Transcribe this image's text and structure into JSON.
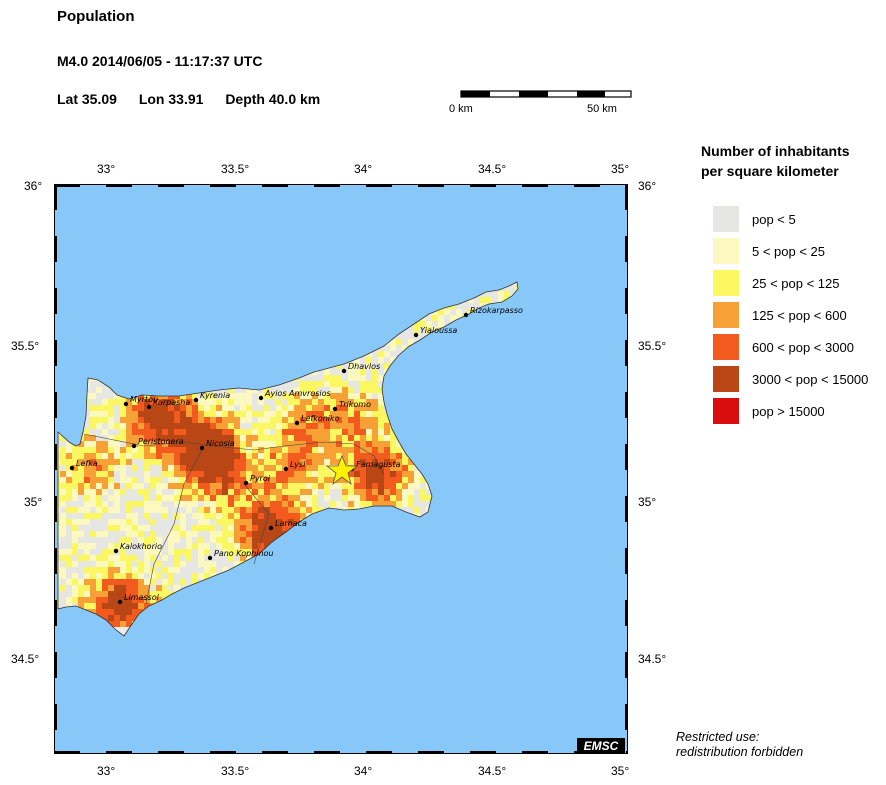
{
  "header": {
    "title": "Population",
    "quake_line": "M4.0  2014/06/05 - 11:17:37 UTC",
    "lat": "Lat 35.09",
    "lon": "Lon  33.91",
    "depth": "Depth  40.0 km"
  },
  "scale_bar": {
    "start_label": "0 km",
    "end_label": "50 km"
  },
  "axes": {
    "x_ticks": [
      "33°",
      "33.5°",
      "34°",
      "34.5°",
      "35°"
    ],
    "y_ticks": [
      "36°",
      "35.5°",
      "35°",
      "34.5°"
    ]
  },
  "legend": {
    "title_line1": "Number of inhabitants",
    "title_line2": "per square kilometer",
    "items": [
      {
        "label": "pop < 5",
        "color": "#e6e6e2"
      },
      {
        "label": "5 < pop < 25",
        "color": "#fbf8c0"
      },
      {
        "label": "25 < pop < 125",
        "color": "#faf760"
      },
      {
        "label": "125 < pop < 600",
        "color": "#f7a035"
      },
      {
        "label": "600 < pop < 3000",
        "color": "#f35a1e"
      },
      {
        "label": "3000 < pop < 15000",
        "color": "#b84715"
      },
      {
        "label": "pop > 15000",
        "color": "#d90d0d"
      }
    ]
  },
  "map": {
    "sea_color": "#88c8f8",
    "cities": [
      {
        "name": "Rizokarpasso"
      },
      {
        "name": "Yialoussa"
      },
      {
        "name": "Dhavlos"
      },
      {
        "name": "Ayios Amvrosios"
      },
      {
        "name": "Kyrenia"
      },
      {
        "name": "Myrtou"
      },
      {
        "name": "Karpasha"
      },
      {
        "name": "Trikomo"
      },
      {
        "name": "Lefkoniko"
      },
      {
        "name": "Peristonera"
      },
      {
        "name": "Nicosia"
      },
      {
        "name": "Famagusta"
      },
      {
        "name": "Lefka"
      },
      {
        "name": "Lysi"
      },
      {
        "name": "Pyroi"
      },
      {
        "name": "Larnaca"
      },
      {
        "name": "Kalokhorio"
      },
      {
        "name": "Pano Kophinou"
      },
      {
        "name": "Limassol"
      }
    ],
    "epicenter_lat": 35.09,
    "epicenter_lon": 33.91
  },
  "watermark": "EMSC",
  "note": {
    "line1": "Restricted use:",
    "line2": "redistribution forbidden"
  }
}
